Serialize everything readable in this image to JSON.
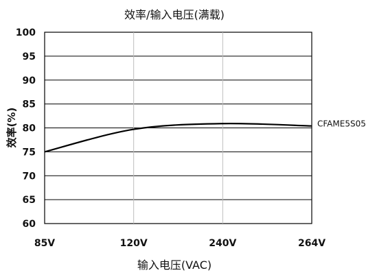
{
  "chart_data": {
    "type": "line",
    "title": "效率/输入电压(满载)",
    "xlabel": "输入电压(VAC)",
    "ylabel": "效率(%)",
    "categories": [
      "85V",
      "120V",
      "240V",
      "264V"
    ],
    "ylim": [
      60,
      100
    ],
    "yticks": [
      "100",
      "95",
      "90",
      "85",
      "80",
      "75",
      "70",
      "65",
      "60"
    ],
    "grid": true,
    "series": [
      {
        "name": "CFAME5S05",
        "color": "#000000",
        "values": [
          75.0,
          79.7,
          80.9,
          80.4
        ]
      }
    ]
  }
}
